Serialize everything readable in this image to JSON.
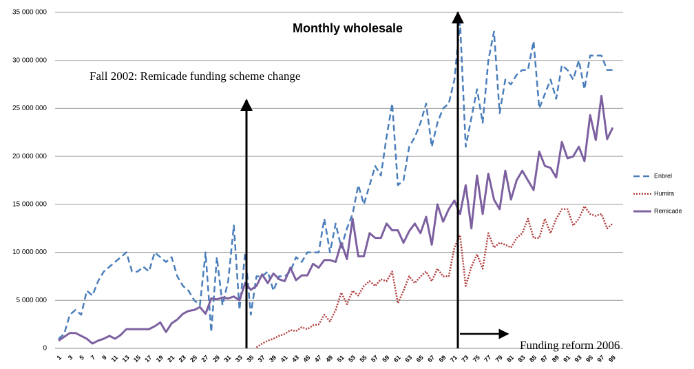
{
  "chart_data": {
    "type": "line",
    "title": "Monthly wholesale",
    "annotations": [
      "Fall 2002: Remicade  funding scheme change",
      "Funding reform 2006"
    ],
    "categories": [
      "1",
      null,
      "3",
      null,
      "5",
      null,
      "7",
      null,
      "9",
      null,
      "11",
      null,
      "13",
      null,
      "15",
      null,
      "17",
      null,
      "19",
      null,
      "21",
      null,
      "23",
      null,
      "25",
      null,
      "27",
      null,
      "29",
      null,
      "31",
      null,
      "33",
      null,
      "35",
      null,
      "37",
      null,
      "39",
      null,
      "41",
      null,
      "43",
      null,
      "45",
      null,
      "47",
      null,
      "49",
      null,
      "51",
      null,
      "53",
      null,
      "55",
      null,
      "57",
      null,
      "59",
      null,
      "61",
      null,
      "63",
      null,
      "65",
      null,
      "67",
      null,
      "69",
      null,
      "71",
      null,
      "73",
      null,
      "75",
      null,
      "77",
      null,
      "79",
      null,
      "81",
      null,
      "83",
      null,
      "85",
      null,
      "87",
      null,
      "89",
      null,
      "91",
      null,
      "93",
      null,
      "95",
      null,
      "97",
      null,
      "99"
    ],
    "series": [
      {
        "name": "Enbrel",
        "color": "#4a7ebb",
        "style": "dashed",
        "values": [
          1000000,
          1500000,
          3500000,
          4000000,
          3500000,
          6000000,
          5500000,
          7000000,
          8000000,
          8500000,
          9000000,
          9500000,
          10000000,
          8000000,
          8000000,
          8500000,
          8000000,
          10000000,
          9500000,
          9000000,
          9500000,
          7500000,
          6500000,
          6000000,
          5000000,
          4500000,
          10000000,
          1700000,
          9500000,
          4500000,
          7000000,
          12800000,
          4000000,
          10000000,
          3500000,
          7500000,
          7500000,
          8000000,
          6000000,
          7500000,
          7500000,
          8000000,
          9500000,
          9000000,
          10000000,
          10000000,
          10000000,
          13500000,
          10000000,
          13000000,
          10500000,
          12500000,
          14000000,
          17000000,
          15000000,
          17000000,
          19000000,
          18000000,
          22000000,
          25500000,
          17000000,
          17500000,
          21000000,
          22000000,
          23500000,
          25500000,
          21000000,
          23500000,
          25000000,
          25500000,
          28000000,
          34000000,
          21000000,
          24000000,
          27000000,
          23500000,
          30000000,
          33000000,
          24500000,
          28000000,
          27500000,
          28500000,
          29000000,
          29000000,
          32000000,
          25000000,
          26500000,
          28000000,
          26000000,
          29500000,
          29000000,
          28000000,
          30000000,
          27000000,
          30500000,
          30500000,
          30500000,
          29000000,
          29000000
        ]
      },
      {
        "name": "Humira",
        "color": "#b03a3a",
        "style": "dotted",
        "values": [
          null,
          null,
          null,
          null,
          null,
          null,
          null,
          null,
          null,
          null,
          null,
          null,
          null,
          null,
          null,
          null,
          null,
          null,
          null,
          null,
          null,
          null,
          null,
          null,
          null,
          null,
          null,
          null,
          null,
          null,
          null,
          null,
          null,
          null,
          null,
          100000,
          500000,
          800000,
          1000000,
          1300000,
          1500000,
          1900000,
          1800000,
          2200000,
          2000000,
          2400000,
          2500000,
          3500000,
          2800000,
          4000000,
          5800000,
          4600000,
          6000000,
          5500000,
          6500000,
          7000000,
          6500000,
          7200000,
          7000000,
          8000000,
          4700000,
          6000000,
          7500000,
          6800000,
          7500000,
          8000000,
          7000000,
          8300000,
          7500000,
          7500000,
          10500000,
          11800000,
          6500000,
          8500000,
          9800000,
          8300000,
          12000000,
          10500000,
          11000000,
          10800000,
          10500000,
          11500000,
          12000000,
          13500000,
          11500000,
          11500000,
          13500000,
          12000000,
          13500000,
          14500000,
          14500000,
          12800000,
          13500000,
          14800000,
          14000000,
          13800000,
          14000000,
          12500000,
          13000000
        ]
      },
      {
        "name": "Remicade",
        "color": "#7d60a0",
        "style": "solid",
        "values": [
          800000,
          1200000,
          1600000,
          1600000,
          1300000,
          1000000,
          500000,
          800000,
          1000000,
          1300000,
          1000000,
          1400000,
          2000000,
          2000000,
          2000000,
          2000000,
          2000000,
          2300000,
          2700000,
          1700000,
          2600000,
          3000000,
          3600000,
          3900000,
          4000000,
          4300000,
          3600000,
          5200000,
          5100000,
          5300000,
          5200000,
          5400000,
          5000000,
          6800000,
          6100000,
          6500000,
          7700000,
          6800000,
          7800000,
          7200000,
          7000000,
          8400000,
          7100000,
          7600000,
          7600000,
          8800000,
          8400000,
          9200000,
          9200000,
          9000000,
          11000000,
          9300000,
          13500000,
          9600000,
          9600000,
          12000000,
          11500000,
          11500000,
          13000000,
          12300000,
          12300000,
          11000000,
          12200000,
          13000000,
          12000000,
          13700000,
          10800000,
          15000000,
          13200000,
          14500000,
          15400000,
          14000000,
          17000000,
          12500000,
          18000000,
          14000000,
          18200000,
          15500000,
          14500000,
          18500000,
          15500000,
          17500000,
          18500000,
          17500000,
          16500000,
          20500000,
          19000000,
          18800000,
          17800000,
          21500000,
          19800000,
          20000000,
          21000000,
          19500000,
          24300000,
          21700000,
          26300000,
          21800000,
          23000000
        ]
      }
    ],
    "ylim": [
      0,
      35000000
    ],
    "yticks": [
      {
        "value": 0,
        "label": "0"
      },
      {
        "value": 5000000,
        "label": "5 000 000"
      },
      {
        "value": 10000000,
        "label": "10 000 000"
      },
      {
        "value": 15000000,
        "label": "15 000 000"
      },
      {
        "value": 20000000,
        "label": "20 000 000"
      },
      {
        "value": 25000000,
        "label": "25 000 000"
      },
      {
        "value": 30000000,
        "label": "30 000 000"
      },
      {
        "value": 35000000,
        "label": "35 000 000"
      }
    ],
    "grid": true,
    "legend": "right"
  }
}
